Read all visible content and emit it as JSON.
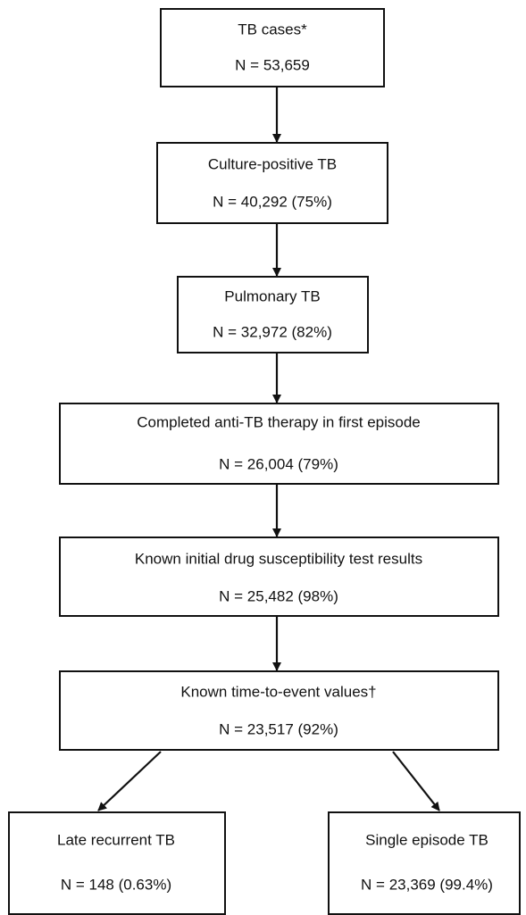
{
  "nodes": [
    {
      "label": "TB cases*",
      "count": "N = 53,659"
    },
    {
      "label": "Culture-positive TB",
      "count": "N = 40,292 (75%)"
    },
    {
      "label": "Pulmonary TB",
      "count": "N = 32,972 (82%)"
    },
    {
      "label": "Completed anti-TB therapy in first episode",
      "count": "N = 26,004 (79%)"
    },
    {
      "label": "Known initial drug susceptibility test results",
      "count": "N = 25,482 (98%)"
    },
    {
      "label": "Known time-to-event values†",
      "count": "N = 23,517 (92%)"
    },
    {
      "label": "Late recurrent TB",
      "count": "N = 148 (0.63%)"
    },
    {
      "label": "Single episode TB",
      "count": "N = 23,369 (99.4%)"
    }
  ]
}
